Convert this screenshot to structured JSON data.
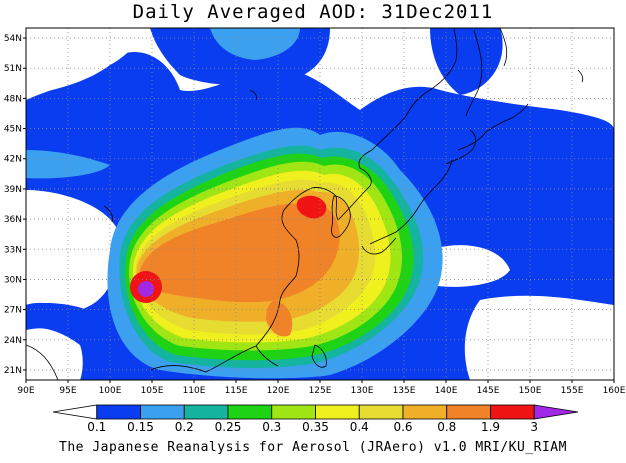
{
  "title": "Daily Averaged AOD: 31Dec2011",
  "footer": "The Japanese Reanalysis for Aerosol (JRAero) v1.0 MRI/KU_RIAM",
  "map": {
    "lon_range": [
      90,
      160
    ],
    "lat_range": [
      20,
      55
    ],
    "lon_ticks": [
      "90E",
      "95E",
      "100E",
      "105E",
      "110E",
      "115E",
      "120E",
      "125E",
      "130E",
      "135E",
      "140E",
      "145E",
      "150E",
      "155E",
      "160E"
    ],
    "lat_ticks": [
      "21N",
      "24N",
      "27N",
      "30N",
      "33N",
      "36N",
      "39N",
      "42N",
      "45N",
      "48N",
      "51N",
      "54N"
    ],
    "grid": true
  },
  "colorbar": {
    "labels": [
      "0.1",
      "0.15",
      "0.2",
      "0.25",
      "0.3",
      "0.35",
      "0.4",
      "0.6",
      "0.8",
      "1.9",
      "3"
    ],
    "colors": [
      "#ffffff",
      "#0a3cf0",
      "#3ca0f0",
      "#14b4a0",
      "#1ed214",
      "#a0e614",
      "#f0f01e",
      "#e6dc32",
      "#f0af28",
      "#f08228",
      "#f01414",
      "#a028e6"
    ]
  }
}
